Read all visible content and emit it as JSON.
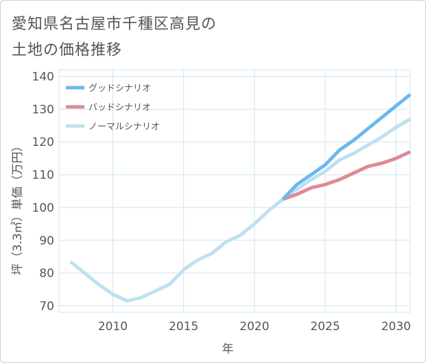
{
  "title": {
    "line1": "愛知県名古屋市千種区高見の",
    "line2": "土地の価格推移"
  },
  "colors": {
    "good": "#6cb8ec",
    "bad": "#de8a94",
    "normal": "#bfe0ef",
    "grid": "#cde3f1",
    "axis_text": "#555555"
  },
  "chart_data": {
    "type": "line",
    "title": "愛知県名古屋市千種区高見の土地の価格推移",
    "xlabel": "年",
    "ylabel": "坪（3.3㎡）単価（万円）",
    "xlim": [
      2006.2,
      2031
    ],
    "ylim": [
      68,
      142
    ],
    "xticks": [
      2010,
      2015,
      2020,
      2025,
      2030
    ],
    "yticks": [
      70,
      80,
      90,
      100,
      110,
      120,
      130,
      140
    ],
    "grid": true,
    "legend_position": "top-left",
    "series": [
      {
        "name": "グッドシナリオ",
        "color": "#6cb8ec",
        "x": [
          2022,
          2023,
          2024,
          2025,
          2026,
          2027,
          2028,
          2029,
          2030,
          2031
        ],
        "y": [
          102.5,
          107,
          110,
          113,
          117.5,
          120.5,
          124,
          127.5,
          131,
          134.5
        ]
      },
      {
        "name": "バッドシナリオ",
        "color": "#de8a94",
        "x": [
          2022,
          2023,
          2024,
          2025,
          2026,
          2027,
          2028,
          2029,
          2030,
          2031
        ],
        "y": [
          102.5,
          104,
          106,
          107,
          108.5,
          110.5,
          112.5,
          113.5,
          115,
          117
        ]
      },
      {
        "name": "ノーマルシナリオ",
        "color": "#bfe0ef",
        "x": [
          2007,
          2008,
          2009,
          2010,
          2011,
          2012,
          2013,
          2014,
          2015,
          2016,
          2017,
          2018,
          2019,
          2020,
          2021,
          2022,
          2023,
          2024,
          2025,
          2026,
          2027,
          2028,
          2029,
          2030,
          2031
        ],
        "y": [
          83.5,
          80,
          76.5,
          73.5,
          71.5,
          72.5,
          74.5,
          76.5,
          81,
          84,
          86,
          89.5,
          91.5,
          95,
          99,
          102.5,
          105.5,
          108.5,
          111,
          114.5,
          116.5,
          119,
          121.5,
          124.5,
          127
        ]
      }
    ]
  }
}
